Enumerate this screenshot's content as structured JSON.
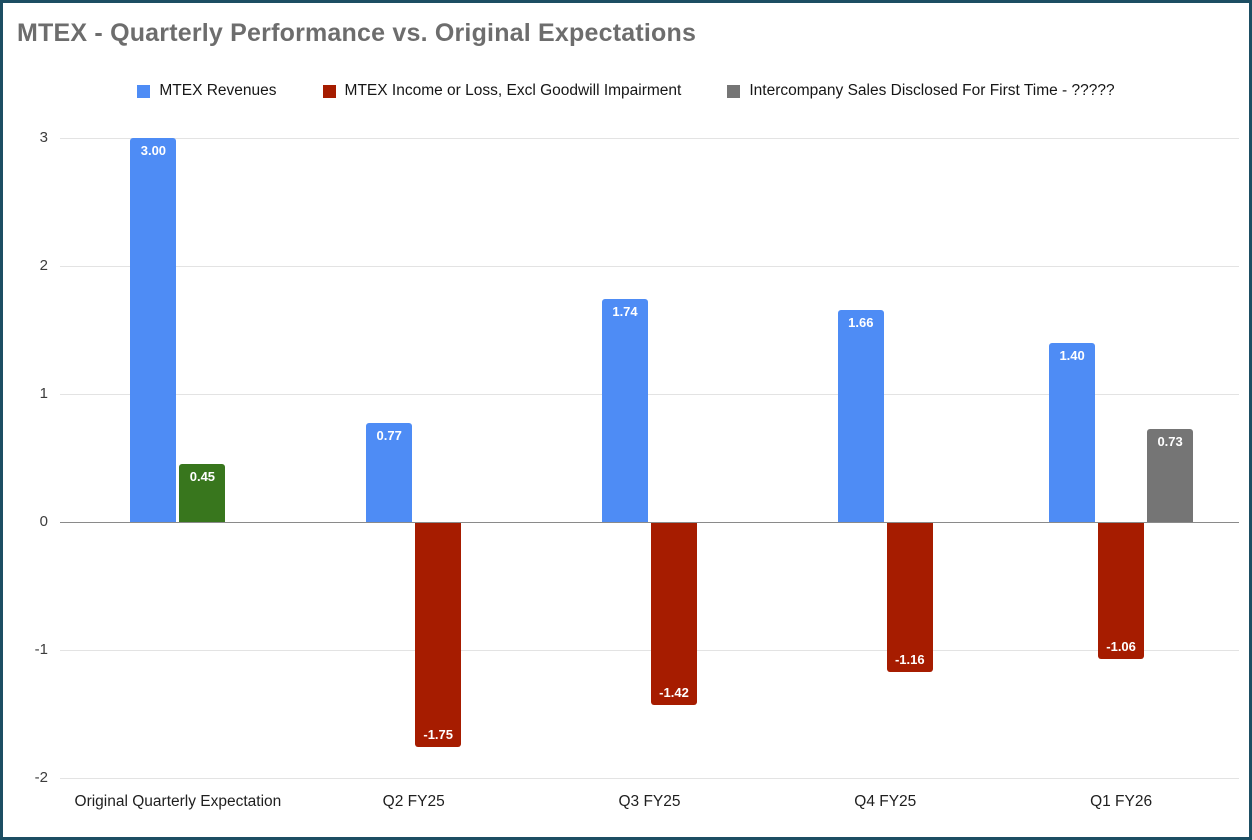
{
  "page": {
    "title": "MTEX - Quarterly Performance vs. Original Expectations"
  },
  "colors": {
    "frame_border": "#1d4e63",
    "title_text": "#6d6d6d",
    "revenue_blue": "#4e8cf5",
    "loss_red": "#a61c00",
    "expectation_green": "#38761d",
    "intercompany_gray": "#757575"
  },
  "legend": {
    "items": [
      {
        "label": "MTEX Revenues",
        "color": "#4e8cf5"
      },
      {
        "label": "MTEX Income or Loss, Excl Goodwill Impairment",
        "color": "#a61c00"
      },
      {
        "label": "Intercompany Sales Disclosed For First Time - ?????",
        "color": "#757575"
      }
    ]
  },
  "chart_data": {
    "type": "bar",
    "title": "MTEX - Quarterly Performance vs. Original Expectations",
    "categories": [
      "Original Quarterly Expectation",
      "Q2 FY25",
      "Q3 FY25",
      "Q4 FY25",
      "Q1 FY26"
    ],
    "series": [
      {
        "name": "MTEX Revenues",
        "color": "#4e8cf5",
        "values": [
          3.0,
          0.77,
          1.74,
          1.66,
          1.4
        ],
        "labels": [
          "3.00",
          "0.77",
          "1.74",
          "1.66",
          "1.40"
        ]
      },
      {
        "name": "MTEX Income or Loss, Excl Goodwill Impairment",
        "color": "#a61c00",
        "bar_colors": [
          "#38761d",
          null,
          null,
          null,
          null
        ],
        "values": [
          0.45,
          -1.75,
          -1.42,
          -1.16,
          -1.06
        ],
        "labels": [
          "0.45",
          "-1.75",
          "-1.42",
          "-1.16",
          "-1.06"
        ]
      },
      {
        "name": "Intercompany Sales Disclosed For First Time - ?????",
        "color": "#757575",
        "values": [
          null,
          null,
          null,
          null,
          0.73
        ],
        "labels": [
          null,
          null,
          null,
          null,
          "0.73"
        ]
      }
    ],
    "ylim": [
      -2,
      3
    ],
    "yticks": [
      3,
      2,
      1,
      0,
      -1,
      -2
    ],
    "grid": true,
    "legend_position": "top",
    "xlabel": "",
    "ylabel": ""
  }
}
